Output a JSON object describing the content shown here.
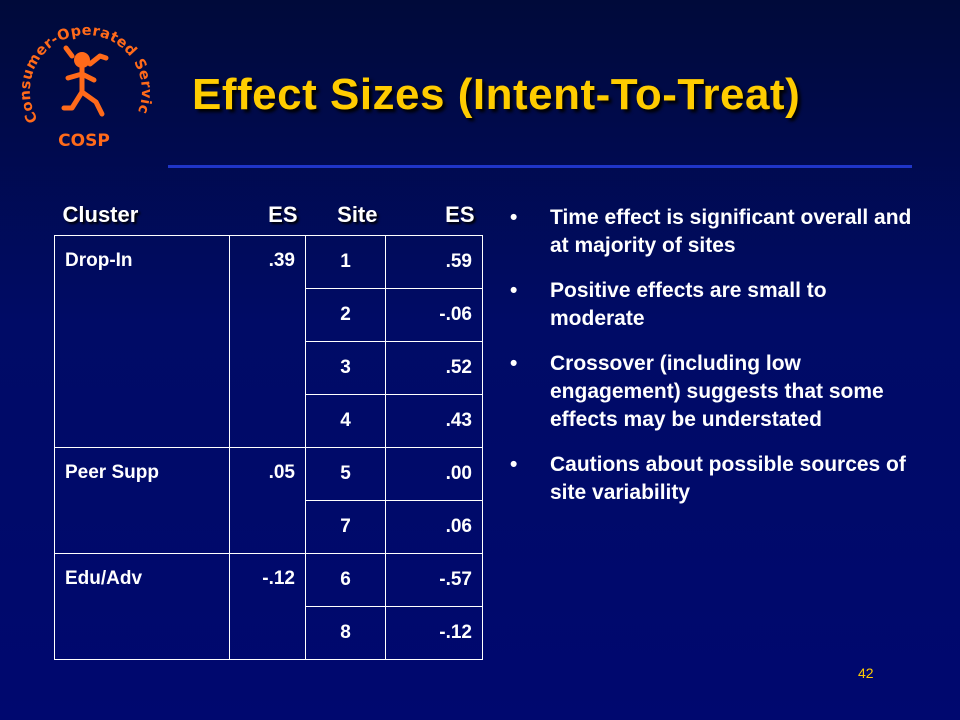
{
  "logo": {
    "ring_text": "Consumer-Operated Service Program",
    "acronym": "COSP",
    "icon": "running-figure-icon"
  },
  "title": "Effect Sizes (Intent-To-Treat)",
  "table": {
    "headers": [
      "Cluster",
      "ES",
      "Site",
      "ES"
    ],
    "clusters": [
      {
        "name": "Drop-In",
        "es": ".39",
        "sites": [
          {
            "site": "1",
            "es": ".59"
          },
          {
            "site": "2",
            "es": "-.06"
          },
          {
            "site": "3",
            "es": ".52"
          },
          {
            "site": "4",
            "es": ".43"
          }
        ]
      },
      {
        "name": "Peer Supp",
        "es": ".05",
        "sites": [
          {
            "site": "5",
            "es": ".00"
          },
          {
            "site": "7",
            "es": ".06"
          }
        ]
      },
      {
        "name": "Edu/Adv",
        "es": "-.12",
        "sites": [
          {
            "site": "6",
            "es": "-.57"
          },
          {
            "site": "8",
            "es": "-.12"
          }
        ]
      }
    ]
  },
  "bullets": [
    "Time effect is significant overall and at majority of sites",
    "Positive effects are small to moderate",
    "Crossover (including low engagement) suggests that some effects may be understated",
    "Cautions about possible sources of site variability"
  ],
  "page_number": "42",
  "colors": {
    "title": "#ffcc00",
    "logo_text": "#ff6a1a",
    "background": "#000b66"
  }
}
